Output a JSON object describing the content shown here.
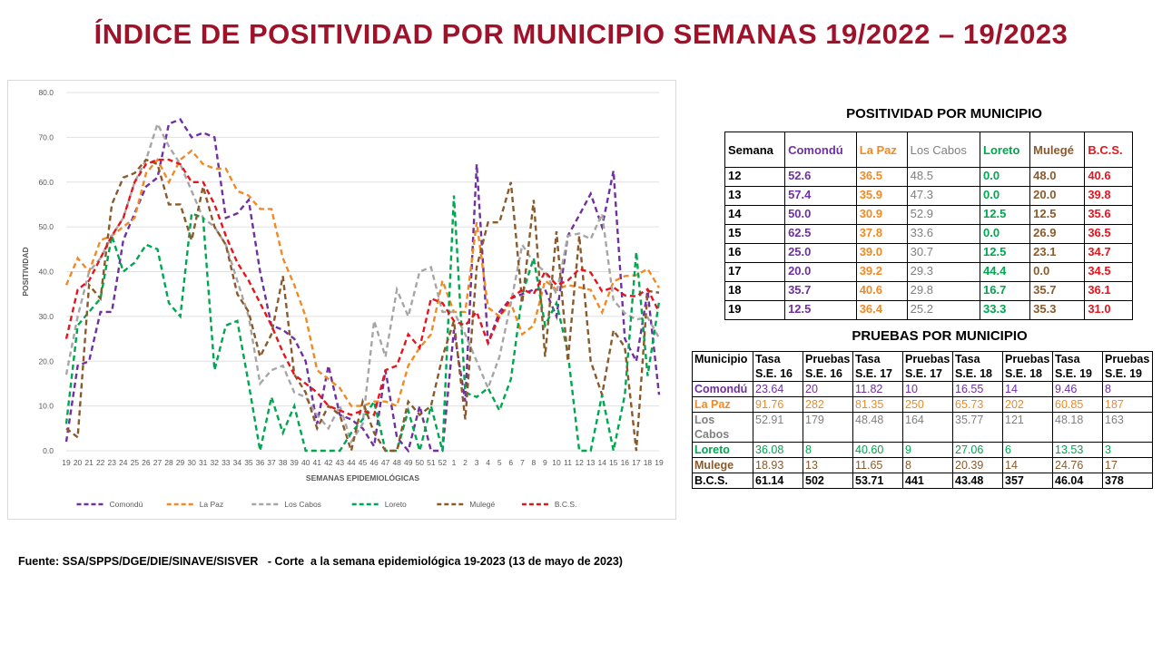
{
  "title": "ÍNDICE DE POSITIVIDAD POR MUNICIPIO SEMANAS 19/2022 – 19/2023",
  "chart_data": {
    "type": "line",
    "x_label": "SEMANAS EPIDEMIOLÓGICAS",
    "y_label": "POSITIVIDAD",
    "categories": [
      "19",
      "20",
      "21",
      "22",
      "23",
      "24",
      "25",
      "26",
      "27",
      "28",
      "29",
      "30",
      "31",
      "32",
      "33",
      "34",
      "35",
      "36",
      "37",
      "38",
      "39",
      "40",
      "41",
      "42",
      "43",
      "44",
      "45",
      "46",
      "47",
      "48",
      "49",
      "50",
      "51",
      "52",
      "1",
      "2",
      "3",
      "4",
      "5",
      "6",
      "7",
      "8",
      "9",
      "10",
      "11",
      "12",
      "13",
      "14",
      "15",
      "16",
      "17",
      "18",
      "19"
    ],
    "ylim": [
      0,
      80
    ],
    "yticks": [
      {
        "value": 0,
        "label": "0.0"
      },
      {
        "value": 10,
        "label": "10.0"
      },
      {
        "value": 20,
        "label": "20.0"
      },
      {
        "value": 30,
        "label": "30.0"
      },
      {
        "value": 40,
        "label": "40.0"
      },
      {
        "value": 50,
        "label": "50.0"
      },
      {
        "value": 60,
        "label": "60.0"
      },
      {
        "value": 70,
        "label": "70.0"
      },
      {
        "value": 80,
        "label": "80.0"
      }
    ],
    "grid": true,
    "legend": "bottom",
    "line_style": "dashed",
    "series": [
      {
        "name": "Comondú",
        "color": "#7030a0",
        "values": [
          2,
          19,
          20,
          31,
          31,
          47,
          53,
          59,
          61,
          73,
          74,
          70,
          71,
          70,
          52,
          53,
          56,
          40,
          28,
          27,
          25,
          20,
          6,
          19,
          8,
          7,
          5,
          1,
          18,
          3,
          0,
          10,
          0,
          0,
          27,
          11,
          64,
          24,
          31,
          34,
          35,
          36,
          36,
          30,
          48,
          52.6,
          57.4,
          50.0,
          62.5,
          25.0,
          20.0,
          35.7,
          12.5
        ]
      },
      {
        "name": "La Paz",
        "color": "#f08a24",
        "values": [
          37,
          43,
          40,
          47,
          48,
          50,
          52,
          62,
          65,
          60,
          65,
          67,
          64,
          63,
          63,
          58,
          57,
          54,
          54,
          43,
          37,
          30,
          18,
          16,
          14,
          10,
          10,
          11,
          11,
          10,
          19,
          23,
          26,
          38,
          31,
          31,
          51,
          32,
          30,
          33,
          26,
          28,
          38,
          36,
          37,
          36.5,
          35.9,
          30.9,
          37.8,
          39.0,
          39.2,
          40.6,
          36.4
        ]
      },
      {
        "name": "Los Cabos",
        "color": "#a6a6a6",
        "values": [
          17,
          30,
          40,
          43,
          48,
          52,
          60,
          65,
          73,
          68,
          64,
          58,
          52,
          50,
          46,
          38,
          30,
          15,
          18,
          19,
          13,
          12,
          8,
          5,
          10,
          2,
          6,
          29,
          21,
          36,
          30,
          40,
          41,
          31,
          31,
          26,
          20,
          14,
          21,
          33,
          46,
          42,
          40,
          35,
          48,
          48.5,
          47.3,
          52.9,
          33.6,
          30.7,
          29.3,
          29.8,
          25.2
        ]
      },
      {
        "name": "Loreto",
        "color": "#00a650",
        "values": [
          6,
          28,
          31,
          34,
          48,
          40,
          42,
          46,
          45,
          33,
          30,
          53,
          52,
          18,
          28,
          29,
          15,
          0,
          12,
          4,
          10,
          0,
          0,
          0,
          0,
          4,
          7,
          11,
          0,
          0,
          9,
          0,
          10,
          0,
          57,
          13,
          12,
          14,
          9,
          16,
          35,
          43,
          28,
          33,
          22,
          0.0,
          0.0,
          12.5,
          0.0,
          12.5,
          44.4,
          16.7,
          33.3
        ]
      },
      {
        "name": "Mulegé",
        "color": "#8b5a2b",
        "values": [
          5,
          3,
          37,
          34,
          55,
          61,
          62,
          65,
          64,
          55,
          55,
          47,
          59,
          50,
          46,
          35,
          31,
          21,
          26,
          39,
          17,
          13,
          5,
          10,
          8,
          0,
          11,
          4,
          0,
          0,
          11,
          8,
          10,
          21,
          29,
          7,
          41,
          51,
          51,
          60,
          33,
          56,
          21,
          49,
          20,
          48.0,
          20.0,
          12.5,
          26.9,
          23.1,
          0.0,
          35.7,
          35.3
        ]
      },
      {
        "name": "B.C.S.",
        "color": "#e8141c",
        "values": [
          25,
          36,
          38,
          43,
          48,
          52,
          60,
          64,
          65,
          65,
          64,
          60,
          60,
          55,
          48,
          42,
          38,
          33,
          28,
          22,
          17,
          15,
          13,
          10,
          9,
          8,
          9,
          8,
          18,
          19,
          26,
          23,
          34,
          33,
          29,
          28,
          31,
          24,
          30,
          34,
          36,
          35,
          40,
          37,
          38,
          40.6,
          39.8,
          35.6,
          36.5,
          34.7,
          34.5,
          36.1,
          31.0
        ]
      }
    ]
  },
  "table1": {
    "title": "POSITIVIDAD POR MUNICIPIO",
    "header": [
      "Semana",
      "Comondú",
      "La Paz",
      "Los Cabos",
      "Loreto",
      "Mulegé",
      "B.C.S."
    ],
    "rows": [
      [
        "12",
        "52.6",
        "36.5",
        "48.5",
        "0.0",
        "48.0",
        "40.6"
      ],
      [
        "13",
        "57.4",
        "35.9",
        "47.3",
        "0.0",
        "20.0",
        "39.8"
      ],
      [
        "14",
        "50.0",
        "30.9",
        "52.9",
        "12.5",
        "12.5",
        "35.6"
      ],
      [
        "15",
        "62.5",
        "37.8",
        "33.6",
        "0.0",
        "26.9",
        "36.5"
      ],
      [
        "16",
        "25.0",
        "39.0",
        "30.7",
        "12.5",
        "23.1",
        "34.7"
      ],
      [
        "17",
        "20.0",
        "39.2",
        "29.3",
        "44.4",
        "0.0",
        "34.5"
      ],
      [
        "18",
        "35.7",
        "40.6",
        "29.8",
        "16.7",
        "35.7",
        "36.1"
      ],
      [
        "19",
        "12.5",
        "36.4",
        "25.2",
        "33.3",
        "35.3",
        "31.0"
      ]
    ]
  },
  "table2": {
    "title": "PRUEBAS POR MUNICIPIO",
    "header": [
      "Municipio",
      "Tasa S.E. 16",
      "Pruebas S.E. 16",
      "Tasa S.E. 17",
      "Pruebas S.E. 17",
      "Tasa S.E. 18",
      "Pruebas S.E. 18",
      "Tasa S.E. 19",
      "Pruebas S.E. 19"
    ],
    "rows": [
      [
        "Comondú",
        "23.64",
        "20",
        "11.82",
        "10",
        "16.55",
        "14",
        "9.46",
        "8"
      ],
      [
        "La Paz",
        "91.76",
        "282",
        "81.35",
        "250",
        "65.73",
        "202",
        "60.85",
        "187"
      ],
      [
        "Los Cabos",
        "52.91",
        "179",
        "48.48",
        "164",
        "35.77",
        "121",
        "48.18",
        "163"
      ],
      [
        "Loreto",
        "36.08",
        "8",
        "40.60",
        "9",
        "27.06",
        "6",
        "13.53",
        "3"
      ],
      [
        "Mulege",
        "18.93",
        "13",
        "11.65",
        "8",
        "20.39",
        "14",
        "24.76",
        "17"
      ],
      [
        "B.C.S.",
        "61.14",
        "502",
        "53.71",
        "441",
        "43.48",
        "357",
        "46.04",
        "378"
      ]
    ]
  },
  "source": "Fuente: SSA/SPPS/DGE/DIE/SINAVE/SISVER   - Corte  a la semana epidemiológica 19-2023 (13 de mayo de 2023)"
}
